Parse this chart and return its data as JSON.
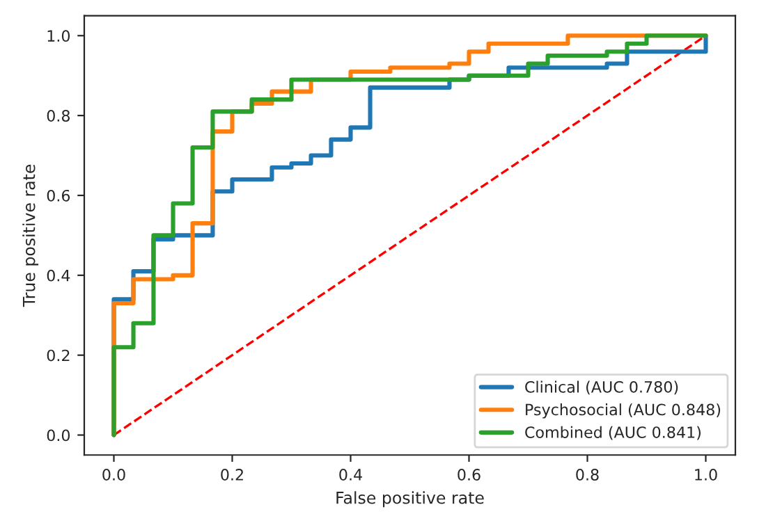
{
  "chart_data": {
    "type": "line",
    "xlabel": "False positive rate",
    "ylabel": "True positive rate",
    "xlim": [
      -0.05,
      1.05
    ],
    "ylim": [
      -0.05,
      1.05
    ],
    "xticks": [
      {
        "value": 0,
        "label": "0.0"
      },
      {
        "value": 0.2,
        "label": "0.2"
      },
      {
        "value": 0.4,
        "label": "0.4"
      },
      {
        "value": 0.6,
        "label": "0.6"
      },
      {
        "value": 0.8,
        "label": "0.8"
      },
      {
        "value": 1,
        "label": "1.0"
      }
    ],
    "yticks": [
      {
        "value": 0,
        "label": "0.0"
      },
      {
        "value": 0.2,
        "label": "0.2"
      },
      {
        "value": 0.4,
        "label": "0.4"
      },
      {
        "value": 0.6,
        "label": "0.6"
      },
      {
        "value": 0.8,
        "label": "0.8"
      },
      {
        "value": 1,
        "label": "1.0"
      }
    ],
    "grid": false,
    "legend": "bottom right",
    "line_style": "solid",
    "marker": "none",
    "series": [
      {
        "name": "Clinical (AUC 0.780)",
        "color": "#1f77b4",
        "x": [
          0,
          0,
          0.033,
          0.033,
          0.067,
          0.067,
          0.1,
          0.1,
          0.167,
          0.167,
          0.2,
          0.2,
          0.267,
          0.267,
          0.3,
          0.3,
          0.333,
          0.333,
          0.367,
          0.367,
          0.4,
          0.4,
          0.433,
          0.433,
          0.567,
          0.567,
          0.6,
          0.6,
          0.667,
          0.667,
          0.833,
          0.833,
          0.867,
          0.867,
          1,
          1
        ],
        "values": [
          0,
          0.34,
          0.34,
          0.41,
          0.41,
          0.49,
          0.49,
          0.5,
          0.5,
          0.61,
          0.61,
          0.64,
          0.64,
          0.67,
          0.67,
          0.68,
          0.68,
          0.7,
          0.7,
          0.74,
          0.74,
          0.77,
          0.77,
          0.87,
          0.87,
          0.89,
          0.89,
          0.9,
          0.9,
          0.92,
          0.92,
          0.93,
          0.93,
          0.96,
          0.96,
          1
        ]
      },
      {
        "name": "Psychosocial (AUC 0.848)",
        "color": "#ff7f0e",
        "x": [
          0,
          0,
          0.033,
          0.033,
          0.1,
          0.1,
          0.133,
          0.133,
          0.167,
          0.167,
          0.2,
          0.2,
          0.233,
          0.233,
          0.267,
          0.267,
          0.333,
          0.333,
          0.4,
          0.4,
          0.467,
          0.467,
          0.567,
          0.567,
          0.6,
          0.6,
          0.633,
          0.633,
          0.767,
          0.767,
          1
        ],
        "values": [
          0,
          0.33,
          0.33,
          0.39,
          0.39,
          0.4,
          0.4,
          0.53,
          0.53,
          0.76,
          0.76,
          0.81,
          0.81,
          0.83,
          0.83,
          0.86,
          0.86,
          0.89,
          0.89,
          0.91,
          0.91,
          0.92,
          0.92,
          0.93,
          0.93,
          0.96,
          0.96,
          0.98,
          0.98,
          1,
          1
        ]
      },
      {
        "name": "Combined (AUC 0.841)",
        "color": "#2ca02c",
        "x": [
          0,
          0,
          0.033,
          0.033,
          0.067,
          0.067,
          0.1,
          0.1,
          0.133,
          0.133,
          0.167,
          0.167,
          0.233,
          0.233,
          0.3,
          0.3,
          0.6,
          0.6,
          0.7,
          0.7,
          0.733,
          0.733,
          0.833,
          0.833,
          0.867,
          0.867,
          0.9,
          0.9,
          1
        ],
        "values": [
          0,
          0.22,
          0.22,
          0.28,
          0.28,
          0.5,
          0.5,
          0.58,
          0.58,
          0.72,
          0.72,
          0.81,
          0.81,
          0.84,
          0.84,
          0.89,
          0.89,
          0.9,
          0.9,
          0.93,
          0.93,
          0.95,
          0.95,
          0.96,
          0.96,
          0.98,
          0.98,
          1,
          1
        ]
      },
      {
        "color": "#ff0000",
        "line_style": "dashed",
        "x": [
          0,
          1
        ],
        "values": [
          0,
          1
        ]
      }
    ]
  }
}
